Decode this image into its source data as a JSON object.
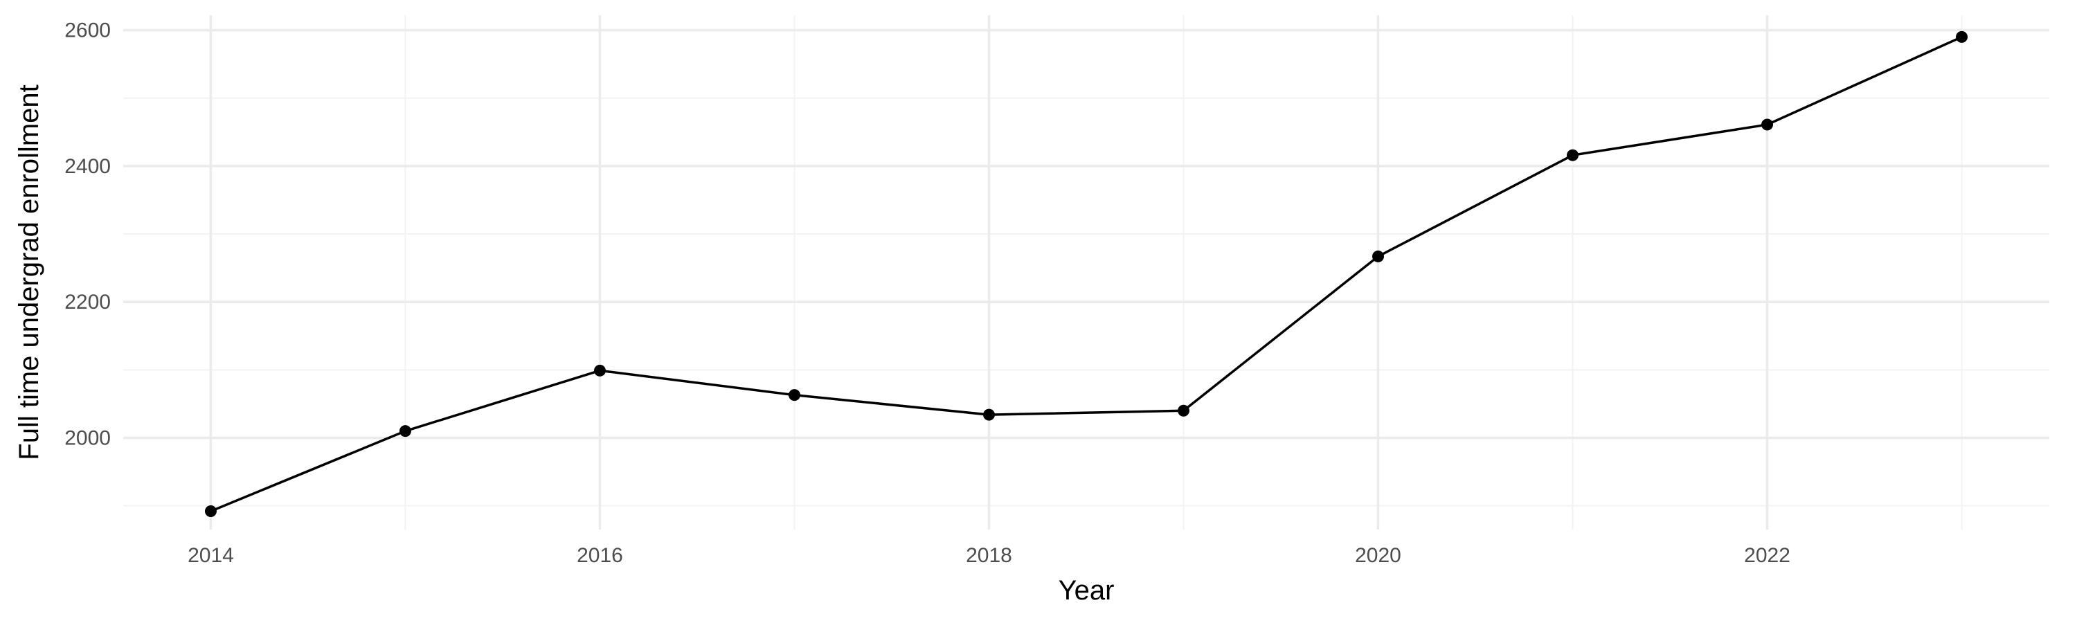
{
  "chart_data": {
    "type": "line",
    "xlabel": "Year",
    "ylabel": "Full time undergrad enrollment",
    "x": [
      2014,
      2015,
      2016,
      2017,
      2018,
      2019,
      2020,
      2021,
      2022,
      2023
    ],
    "series": [
      {
        "values": [
          1892,
          2010,
          2099,
          2063,
          2034,
          2040,
          2267,
          2416,
          2461,
          2590
        ]
      }
    ],
    "xlim": [
      2013.55,
      2023.45
    ],
    "ylim": [
      1865,
      2622
    ],
    "x_ticks": [
      2014,
      2016,
      2018,
      2020,
      2022
    ],
    "x_minor_ticks": [
      2015,
      2017,
      2019,
      2021,
      2023
    ],
    "y_ticks": [
      2000,
      2200,
      2400,
      2600
    ],
    "y_minor_ticks": [
      1900,
      2100,
      2300,
      2500
    ],
    "grid": true,
    "legend": "none",
    "colors": {
      "line": "#000000",
      "point": "#000000",
      "grid": "#ebebeb",
      "background": "#ffffff"
    }
  }
}
